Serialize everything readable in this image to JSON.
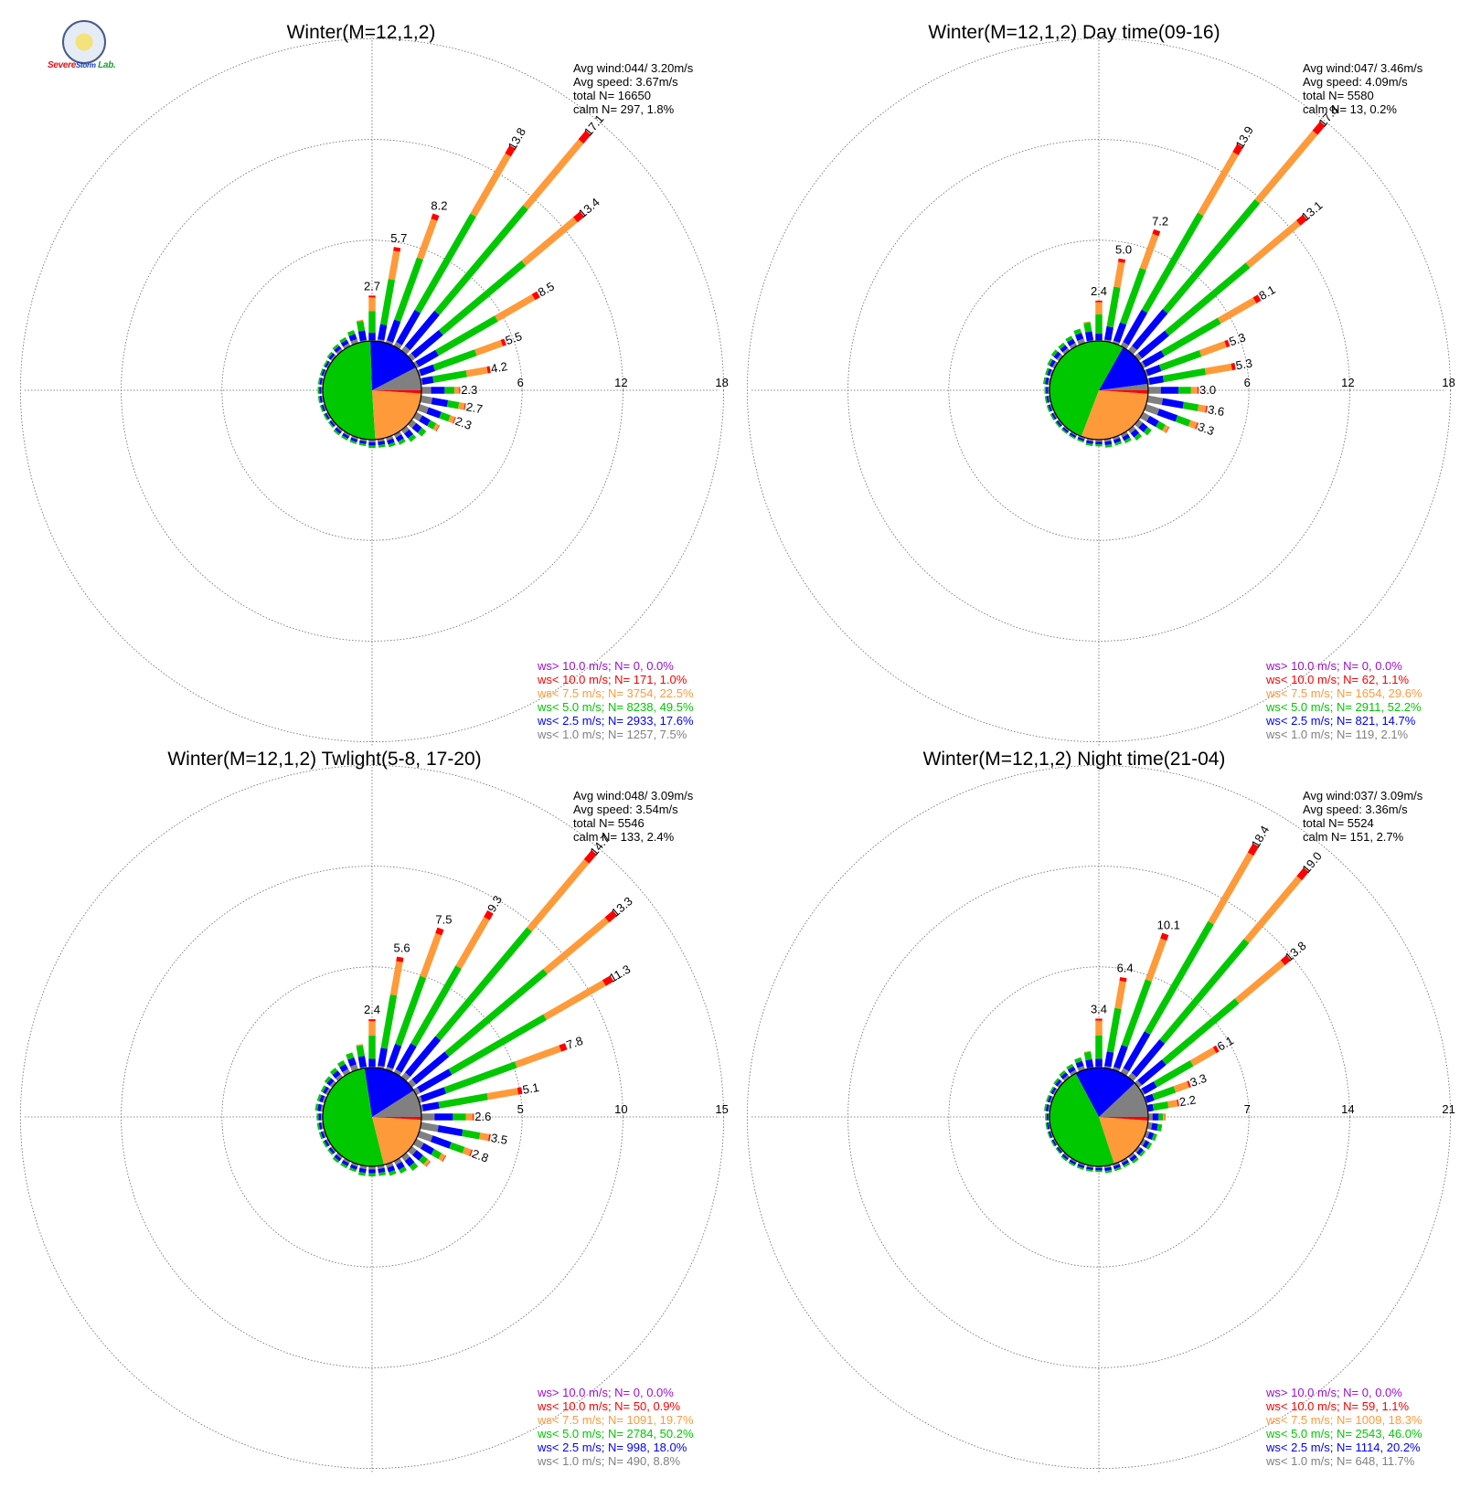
{
  "logo": {
    "text": "SevereStorm Lab.",
    "parts": [
      {
        "t": "Severe",
        "c": "#e0131a"
      },
      {
        "t": "Storm",
        "c": "#1238c8"
      },
      {
        "t": " Lab.",
        "c": "#16a02a"
      }
    ]
  },
  "colors": {
    "gt10": "#9b0fd0",
    "lt10": "#ff0000",
    "lt7_5": "#ff9a3a",
    "lt5": "#00c800",
    "lt2_5": "#0000ff",
    "lt1": "#808080",
    "grid": "#666666",
    "text": "#000000"
  },
  "chart_data": [
    {
      "type": "windrose",
      "title": "Winter(M=12,1,2)",
      "rmax": 18,
      "ring_labels": [
        "6",
        "12",
        "18"
      ],
      "stats": [
        "Avg wind:044/ 3.20m/s",
        "Avg speed: 3.67m/s",
        "total N=      16650",
        "calm N=    297,   1.8%"
      ],
      "legend": [
        {
          "text": "ws> 10.0 m/s; N=      0,  0.0%",
          "color": "#9b0fd0"
        },
        {
          "text": "ws< 10.0 m/s; N=    171,  1.0%",
          "color": "#ff0000"
        },
        {
          "text": "ws<  7.5 m/s; N=  3754, 22.5%",
          "color": "#ff9a3a"
        },
        {
          "text": "ws<  5.0 m/s; N=  8238, 49.5%",
          "color": "#00c800"
        },
        {
          "text": "ws<  2.5 m/s; N=  2933, 17.6%",
          "color": "#0000ff"
        },
        {
          "text": "ws<  1.0 m/s; N=  1257,  7.5%",
          "color": "#808080"
        }
      ],
      "pie": [
        7.5,
        17.6,
        49.5,
        22.5,
        1.0,
        0.0
      ],
      "directions": [
        0,
        10,
        20,
        30,
        40,
        50,
        60,
        70,
        80,
        90,
        100,
        110,
        120,
        130,
        140,
        150,
        160,
        170,
        180,
        190,
        200,
        210,
        220,
        230,
        240,
        250,
        260,
        270,
        280,
        290,
        300,
        310,
        320,
        330,
        340,
        350
      ],
      "freq": [
        2.7,
        5.7,
        8.2,
        13.8,
        17.1,
        13.4,
        8.5,
        5.5,
        4.2,
        2.3,
        2.7,
        2.3,
        1.6,
        1.1,
        0.9,
        0.7,
        0.6,
        0.5,
        0.5,
        0.4,
        0.4,
        0.4,
        0.4,
        0.3,
        0.3,
        0.3,
        0.3,
        0.3,
        0.3,
        0.3,
        0.3,
        0.4,
        0.5,
        0.6,
        0.8,
        1.3
      ],
      "labels": {
        "0": "2.7",
        "10": "5.7",
        "20": "8.2",
        "30": "13.8",
        "40": "17.1",
        "50": "13.4",
        "60": "8.5",
        "70": "5.5",
        "80": "4.2",
        "90": "2.3",
        "100": "2.7",
        "110": "2.3"
      }
    },
    {
      "type": "windrose",
      "title": "Winter(M=12,1,2) Day time(09-16)",
      "rmax": 18,
      "ring_labels": [
        "6",
        "12",
        "18"
      ],
      "stats": [
        "Avg wind:047/ 3.46m/s",
        "Avg speed: 4.09m/s",
        "total N=       5580",
        "calm N=     13,   0.2%"
      ],
      "legend": [
        {
          "text": "ws> 10.0 m/s; N=      0,  0.0%",
          "color": "#9b0fd0"
        },
        {
          "text": "ws< 10.0 m/s; N=     62,  1.1%",
          "color": "#ff0000"
        },
        {
          "text": "ws<  7.5 m/s; N=  1654, 29.6%",
          "color": "#ff9a3a"
        },
        {
          "text": "ws<  5.0 m/s; N=  2911, 52.2%",
          "color": "#00c800"
        },
        {
          "text": "ws<  2.5 m/s; N=    821, 14.7%",
          "color": "#0000ff"
        },
        {
          "text": "ws<  1.0 m/s; N=    119,  2.1%",
          "color": "#808080"
        }
      ],
      "pie": [
        2.1,
        14.7,
        52.2,
        29.6,
        1.1,
        0.0
      ],
      "directions": [
        0,
        10,
        20,
        30,
        40,
        50,
        60,
        70,
        80,
        90,
        100,
        110,
        120,
        130,
        140,
        150,
        160,
        170,
        180,
        190,
        200,
        210,
        220,
        230,
        240,
        250,
        260,
        270,
        280,
        290,
        300,
        310,
        320,
        330,
        340,
        350
      ],
      "freq": [
        2.4,
        5.0,
        7.2,
        13.9,
        17.8,
        13.1,
        8.1,
        5.3,
        5.3,
        3.0,
        3.6,
        3.3,
        1.8,
        1.0,
        0.8,
        0.6,
        0.5,
        0.5,
        0.4,
        0.4,
        0.3,
        0.3,
        0.3,
        0.3,
        0.3,
        0.3,
        0.3,
        0.3,
        0.4,
        0.4,
        0.5,
        0.6,
        0.6,
        0.7,
        0.9,
        1.2
      ],
      "labels": {
        "0": "2.4",
        "10": "5.0",
        "20": "7.2",
        "30": "13.9",
        "40": "17.8",
        "50": "13.1",
        "60": "8.1",
        "70": "5.3",
        "80": "5.3",
        "90": "3.0",
        "100": "3.6",
        "110": "3.3"
      }
    },
    {
      "type": "windrose",
      "title": "Winter(M=12,1,2) Twlight(5-8, 17-20)",
      "rmax": 15,
      "ring_labels": [
        "5",
        "10",
        "15"
      ],
      "stats": [
        "Avg wind:048/ 3.09m/s",
        "Avg speed: 3.54m/s",
        "total N=       5546",
        "calm N=    133,   2.4%"
      ],
      "legend": [
        {
          "text": "ws> 10.0 m/s; N=      0,  0.0%",
          "color": "#9b0fd0"
        },
        {
          "text": "ws< 10.0 m/s; N=     50,  0.9%",
          "color": "#ff0000"
        },
        {
          "text": "ws<  7.5 m/s; N=  1091, 19.7%",
          "color": "#ff9a3a"
        },
        {
          "text": "ws<  5.0 m/s; N=  2784, 50.2%",
          "color": "#00c800"
        },
        {
          "text": "ws<  2.5 m/s; N=    998, 18.0%",
          "color": "#0000ff"
        },
        {
          "text": "ws<  1.0 m/s; N=    490,  8.8%",
          "color": "#808080"
        }
      ],
      "pie": [
        8.8,
        18.0,
        50.2,
        19.7,
        0.9,
        0.0
      ],
      "directions": [
        0,
        10,
        20,
        30,
        40,
        50,
        60,
        70,
        80,
        90,
        100,
        110,
        120,
        130,
        140,
        150,
        160,
        170,
        180,
        190,
        200,
        210,
        220,
        230,
        240,
        250,
        260,
        270,
        280,
        290,
        300,
        310,
        320,
        330,
        340,
        350
      ],
      "freq": [
        2.4,
        5.6,
        7.5,
        9.3,
        14.7,
        13.3,
        11.3,
        7.8,
        5.1,
        2.6,
        3.5,
        2.8,
        1.7,
        1.2,
        0.9,
        0.7,
        0.6,
        0.5,
        0.5,
        0.5,
        0.4,
        0.4,
        0.4,
        0.3,
        0.3,
        0.3,
        0.3,
        0.3,
        0.4,
        0.4,
        0.4,
        0.5,
        0.6,
        0.7,
        0.9,
        1.2
      ],
      "labels": {
        "0": "2.4",
        "10": "5.6",
        "20": "7.5",
        "30": "9.3",
        "40": "14.7",
        "50": "13.3",
        "60": "11.3",
        "70": "7.8",
        "80": "5.1",
        "90": "2.6",
        "100": "3.5",
        "110": "2.8"
      }
    },
    {
      "type": "windrose",
      "title": "Winter(M=12,1,2) Night time(21-04)",
      "rmax": 21,
      "ring_labels": [
        "7",
        "14",
        "21"
      ],
      "stats": [
        "Avg wind:037/ 3.09m/s",
        "Avg speed: 3.36m/s",
        "total N=       5524",
        "calm N=    151,   2.7%"
      ],
      "legend": [
        {
          "text": "ws> 10.0 m/s; N=      0,  0.0%",
          "color": "#9b0fd0"
        },
        {
          "text": "ws< 10.0 m/s; N=     59,  1.1%",
          "color": "#ff0000"
        },
        {
          "text": "ws<  7.5 m/s; N=  1009, 18.3%",
          "color": "#ff9a3a"
        },
        {
          "text": "ws<  5.0 m/s; N=  2543, 46.0%",
          "color": "#00c800"
        },
        {
          "text": "ws<  2.5 m/s; N=  1114, 20.2%",
          "color": "#0000ff"
        },
        {
          "text": "ws<  1.0 m/s; N=    648, 11.7%",
          "color": "#808080"
        }
      ],
      "pie": [
        11.7,
        20.2,
        46.0,
        18.3,
        1.1,
        0.0
      ],
      "directions": [
        0,
        10,
        20,
        30,
        40,
        50,
        60,
        70,
        80,
        90,
        100,
        110,
        120,
        130,
        140,
        150,
        160,
        170,
        180,
        190,
        200,
        210,
        220,
        230,
        240,
        250,
        260,
        270,
        280,
        290,
        300,
        310,
        320,
        330,
        340,
        350
      ],
      "freq": [
        3.4,
        6.4,
        10.1,
        18.4,
        19.0,
        13.8,
        6.1,
        3.3,
        2.2,
        1.2,
        1.0,
        0.8,
        0.7,
        0.6,
        0.6,
        0.5,
        0.5,
        0.5,
        0.4,
        0.4,
        0.4,
        0.4,
        0.4,
        0.3,
        0.3,
        0.3,
        0.3,
        0.3,
        0.4,
        0.4,
        0.4,
        0.5,
        0.6,
        0.7,
        0.9,
        1.2
      ],
      "labels": {
        "0": "3.4",
        "10": "6.4",
        "20": "10.1",
        "30": "18.4",
        "40": "19.0",
        "50": "13.8",
        "60": "6.1",
        "70": "3.3",
        "80": "2.2"
      }
    }
  ]
}
